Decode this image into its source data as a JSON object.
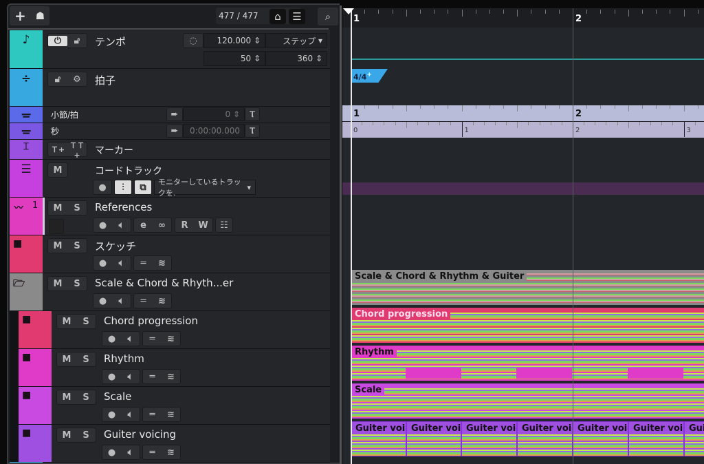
{
  "toolbar": {
    "add_icon": "plus-icon",
    "folder_icon": "track-presets-icon",
    "count": "477 / 477",
    "search_icon": "search-icon"
  },
  "tempo": {
    "name": "テンポ",
    "color": "#2ec8c0",
    "value": "120.000",
    "mode": "ステップ",
    "min": "50",
    "max": "360"
  },
  "signature": {
    "name": "拍子",
    "color": "#38a8e0",
    "event": "4/4"
  },
  "ruler_bars": {
    "name": "小節/拍",
    "color": "#5a6ae8",
    "value": "0"
  },
  "ruler_time": {
    "name": "秒",
    "color": "#7a58e4",
    "value": "0:00:00.000"
  },
  "marker": {
    "name": "マーカー",
    "color": "#9a50e0"
  },
  "chord": {
    "name": "コードトラック",
    "color": "#c640e0",
    "m": "M",
    "dropdown": "モニターしているトラックを."
  },
  "references": {
    "name": "References",
    "color": "#e03cc0",
    "number": "1",
    "m": "M",
    "s": "S",
    "r": "R",
    "w": "W"
  },
  "folders": [
    {
      "name": "スケッチ",
      "color": "#e03a70",
      "m": "M",
      "s": "S"
    },
    {
      "name": "Scale & Chord & Rhyth...er",
      "color": "#8a8a8a",
      "m": "M",
      "s": "S",
      "event": "Scale & Chord & Rhythm & Guiter"
    },
    {
      "name": "Chord progression",
      "color": "#e03a70",
      "m": "M",
      "s": "S",
      "event": "Chord progression"
    },
    {
      "name": "Rhythm",
      "color": "#e03ac8",
      "m": "M",
      "s": "S",
      "event": "Rhythm"
    },
    {
      "name": "Scale",
      "color": "#c84ae0",
      "m": "M",
      "s": "S",
      "event": "Scale"
    },
    {
      "name": "Guiter voicing",
      "color": "#a050e0",
      "m": "M",
      "s": "S",
      "event": "Guiter voicing"
    }
  ],
  "ruler": {
    "bars": [
      "1",
      "2"
    ],
    "seconds": [
      "0",
      "1",
      "2",
      "3"
    ]
  }
}
